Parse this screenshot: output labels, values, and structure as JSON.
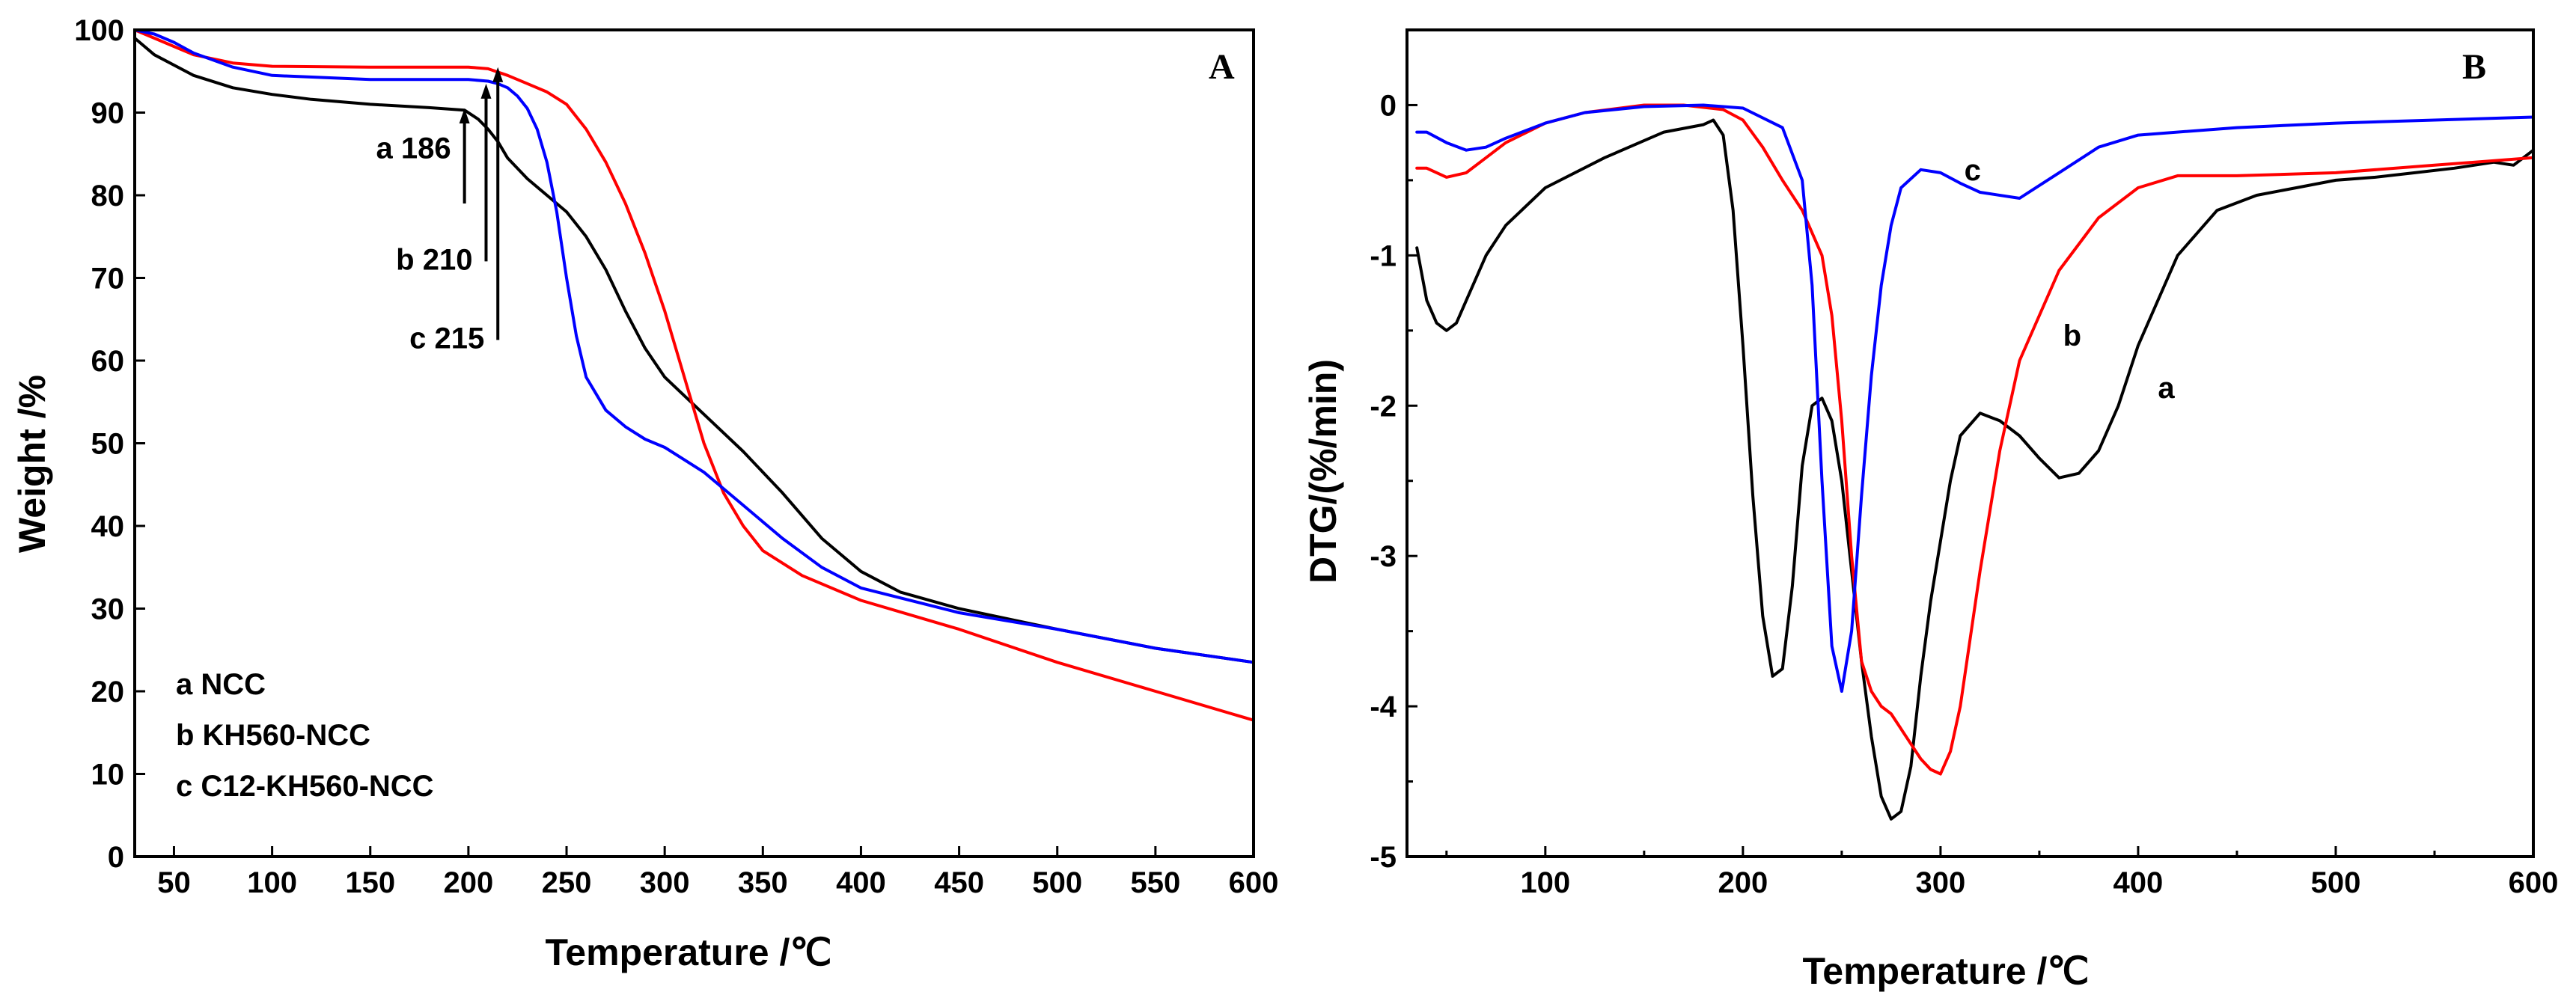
{
  "chart_data": [
    {
      "panel": "A",
      "type": "line",
      "xlabel": "Temperature /℃",
      "ylabel": "Weight /%",
      "xlim": [
        30,
        600
      ],
      "ylim": [
        0,
        100
      ],
      "xticks": [
        50,
        100,
        150,
        200,
        250,
        300,
        350,
        400,
        450,
        500,
        550,
        600
      ],
      "yticks": [
        0,
        10,
        20,
        30,
        40,
        50,
        60,
        70,
        80,
        90,
        100
      ],
      "legend": [
        "a NCC",
        "b KH560-NCC",
        "c C12-KH560-NCC"
      ],
      "annotations": [
        {
          "label": "a 186",
          "temperature": 198,
          "arrow_from": 79,
          "arrow_to": 90.5
        },
        {
          "label": "b 210",
          "temperature": 209,
          "arrow_from": 72,
          "arrow_to": 93.5
        },
        {
          "label": "c 215",
          "temperature": 215,
          "arrow_from": 62.5,
          "arrow_to": 95.5
        }
      ],
      "series": [
        {
          "name": "a",
          "color": "#000000",
          "x": [
            30,
            40,
            60,
            80,
            100,
            120,
            150,
            180,
            198,
            205,
            210,
            215,
            220,
            230,
            240,
            250,
            260,
            270,
            280,
            290,
            300,
            320,
            340,
            360,
            380,
            400,
            420,
            450,
            500,
            550,
            600
          ],
          "y": [
            99,
            97,
            94.5,
            93,
            92.2,
            91.6,
            91,
            90.6,
            90.3,
            89.2,
            88,
            86.5,
            84.5,
            82,
            80,
            78,
            75,
            71,
            66,
            61.5,
            58,
            53.5,
            49,
            44,
            38.5,
            34.5,
            32,
            30,
            27.5,
            25.2,
            23.5
          ]
        },
        {
          "name": "b",
          "color": "#ff0000",
          "x": [
            30,
            40,
            50,
            60,
            80,
            100,
            150,
            200,
            210,
            220,
            230,
            240,
            250,
            260,
            270,
            280,
            290,
            300,
            310,
            320,
            330,
            340,
            350,
            370,
            400,
            450,
            500,
            550,
            600
          ],
          "y": [
            100,
            99,
            98,
            97,
            96,
            95.6,
            95.5,
            95.5,
            95.3,
            94.5,
            93.5,
            92.5,
            91,
            88,
            84,
            79,
            73,
            66,
            58,
            50,
            44,
            40,
            37,
            34,
            31,
            27.5,
            23.5,
            20,
            16.5
          ]
        },
        {
          "name": "c",
          "color": "#0000ff",
          "x": [
            30,
            40,
            50,
            60,
            80,
            100,
            150,
            200,
            210,
            215,
            220,
            225,
            230,
            235,
            240,
            245,
            250,
            255,
            260,
            270,
            280,
            290,
            300,
            310,
            320,
            340,
            360,
            380,
            400,
            450,
            500,
            550,
            600
          ],
          "y": [
            100,
            99.5,
            98.5,
            97.2,
            95.5,
            94.5,
            94,
            94,
            93.8,
            93.5,
            93,
            92,
            90.5,
            88,
            84,
            78,
            70,
            63,
            58,
            54,
            52,
            50.5,
            49.5,
            48,
            46.5,
            42.5,
            38.5,
            35,
            32.5,
            29.5,
            27.5,
            25.2,
            23.5
          ]
        }
      ]
    },
    {
      "panel": "B",
      "type": "line",
      "xlabel": "Temperature /℃",
      "ylabel": "DTG/(%/min)",
      "xlim": [
        30,
        600
      ],
      "ylim": [
        -5,
        0.5
      ],
      "xticks": [
        100,
        200,
        300,
        400,
        500,
        600
      ],
      "yticks": [
        0,
        -1,
        -2,
        -3,
        -4,
        -5
      ],
      "series": [
        {
          "name": "a",
          "label": "a",
          "color": "#000000",
          "x": [
            35,
            40,
            45,
            50,
            55,
            60,
            70,
            80,
            100,
            130,
            160,
            180,
            185,
            190,
            195,
            200,
            205,
            210,
            215,
            220,
            225,
            230,
            235,
            240,
            245,
            250,
            255,
            260,
            265,
            270,
            275,
            280,
            285,
            290,
            295,
            300,
            305,
            310,
            320,
            330,
            340,
            350,
            360,
            370,
            380,
            390,
            400,
            420,
            440,
            460,
            480,
            500,
            520,
            540,
            560,
            580,
            590,
            600
          ],
          "y": [
            -0.95,
            -1.3,
            -1.45,
            -1.5,
            -1.45,
            -1.3,
            -1.0,
            -0.8,
            -0.55,
            -0.35,
            -0.18,
            -0.13,
            -0.1,
            -0.2,
            -0.7,
            -1.6,
            -2.6,
            -3.4,
            -3.8,
            -3.75,
            -3.2,
            -2.4,
            -2.0,
            -1.95,
            -2.1,
            -2.5,
            -3.1,
            -3.7,
            -4.2,
            -4.6,
            -4.75,
            -4.7,
            -4.4,
            -3.8,
            -3.3,
            -2.9,
            -2.5,
            -2.2,
            -2.05,
            -2.1,
            -2.2,
            -2.35,
            -2.48,
            -2.45,
            -2.3,
            -2.0,
            -1.6,
            -1.0,
            -0.7,
            -0.6,
            -0.55,
            -0.5,
            -0.48,
            -0.45,
            -0.42,
            -0.38,
            -0.4,
            -0.3
          ]
        },
        {
          "name": "b",
          "label": "b",
          "color": "#ff0000",
          "x": [
            35,
            40,
            50,
            60,
            70,
            80,
            100,
            120,
            150,
            170,
            190,
            200,
            210,
            220,
            230,
            240,
            245,
            250,
            255,
            260,
            265,
            270,
            275,
            280,
            285,
            290,
            295,
            300,
            305,
            310,
            320,
            330,
            340,
            360,
            380,
            400,
            420,
            450,
            500,
            550,
            600
          ],
          "y": [
            -0.42,
            -0.42,
            -0.48,
            -0.45,
            -0.35,
            -0.25,
            -0.12,
            -0.05,
            0.0,
            0.0,
            -0.03,
            -0.1,
            -0.28,
            -0.5,
            -0.7,
            -1.0,
            -1.4,
            -2.1,
            -3.0,
            -3.7,
            -3.9,
            -4.0,
            -4.05,
            -4.15,
            -4.25,
            -4.35,
            -4.42,
            -4.45,
            -4.3,
            -4.0,
            -3.1,
            -2.3,
            -1.7,
            -1.1,
            -0.75,
            -0.55,
            -0.47,
            -0.47,
            -0.45,
            -0.4,
            -0.35
          ]
        },
        {
          "name": "c",
          "label": "c",
          "color": "#0000ff",
          "x": [
            35,
            40,
            50,
            60,
            70,
            80,
            100,
            120,
            150,
            180,
            200,
            220,
            230,
            235,
            240,
            245,
            250,
            255,
            260,
            265,
            270,
            275,
            280,
            290,
            300,
            310,
            320,
            340,
            360,
            380,
            400,
            450,
            500,
            550,
            600
          ],
          "y": [
            -0.18,
            -0.18,
            -0.25,
            -0.3,
            -0.28,
            -0.22,
            -0.12,
            -0.05,
            -0.01,
            0.0,
            -0.02,
            -0.15,
            -0.5,
            -1.2,
            -2.5,
            -3.6,
            -3.9,
            -3.5,
            -2.6,
            -1.8,
            -1.2,
            -0.8,
            -0.55,
            -0.43,
            -0.45,
            -0.52,
            -0.58,
            -0.62,
            -0.45,
            -0.28,
            -0.2,
            -0.15,
            -0.12,
            -0.1,
            -0.08
          ]
        }
      ]
    }
  ]
}
